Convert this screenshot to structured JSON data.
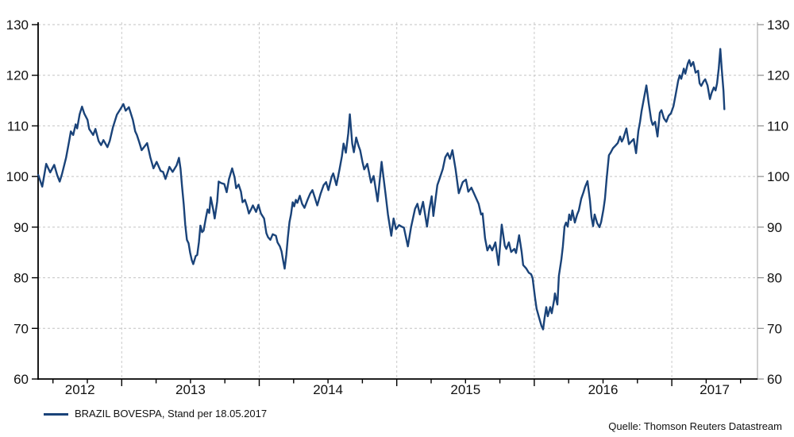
{
  "legend": {
    "label": "BRAZIL BOVESPA, Stand per 18.05.2017",
    "color": "#1a4379"
  },
  "source": "Quelle: Thomson Reuters Datastream",
  "chart_data": {
    "type": "line",
    "title": "",
    "xlabel": "",
    "ylabel": "",
    "grid": "dashed",
    "legend_position": "bottom-left",
    "x_axis": {
      "range": [
        2012.392,
        2017.623
      ],
      "year_labels": [
        "2012",
        "2013",
        "2014",
        "2015",
        "2016",
        "2017"
      ],
      "minor_tick_interval_years": 0.25,
      "gridlines_at_years": [
        2013,
        2014,
        2015,
        2016,
        2017
      ]
    },
    "y_axis": {
      "range": [
        60,
        130
      ],
      "ticks": [
        60,
        70,
        80,
        90,
        100,
        110,
        120,
        130
      ],
      "sides": "both"
    },
    "series": [
      {
        "name": "BRAZIL BOVESPA, Stand per 18.05.2017",
        "color": "#1a4379",
        "points": [
          [
            2012.393,
            100.3
          ],
          [
            2012.422,
            98.0
          ],
          [
            2012.451,
            102.5
          ],
          [
            2012.48,
            100.8
          ],
          [
            2012.509,
            102.3
          ],
          [
            2012.532,
            100.2
          ],
          [
            2012.549,
            99.0
          ],
          [
            2012.566,
            100.5
          ],
          [
            2012.595,
            103.7
          ],
          [
            2012.618,
            107.0
          ],
          [
            2012.63,
            108.9
          ],
          [
            2012.647,
            108.2
          ],
          [
            2012.665,
            110.3
          ],
          [
            2012.676,
            109.5
          ],
          [
            2012.694,
            112.3
          ],
          [
            2012.711,
            113.8
          ],
          [
            2012.728,
            112.4
          ],
          [
            2012.751,
            111.2
          ],
          [
            2012.763,
            109.4
          ],
          [
            2012.792,
            108.2
          ],
          [
            2012.809,
            109.4
          ],
          [
            2012.832,
            107.0
          ],
          [
            2012.85,
            106.2
          ],
          [
            2012.867,
            107.2
          ],
          [
            2012.896,
            105.8
          ],
          [
            2012.913,
            107.0
          ],
          [
            2012.936,
            109.7
          ],
          [
            2012.965,
            112.2
          ],
          [
            2012.988,
            113.2
          ],
          [
            2013.012,
            114.3
          ],
          [
            2013.029,
            113.0
          ],
          [
            2013.052,
            113.7
          ],
          [
            2013.081,
            111.2
          ],
          [
            2013.098,
            108.9
          ],
          [
            2013.11,
            108.2
          ],
          [
            2013.127,
            106.8
          ],
          [
            2013.145,
            105.2
          ],
          [
            2013.168,
            106.0
          ],
          [
            2013.185,
            106.6
          ],
          [
            2013.208,
            103.8
          ],
          [
            2013.231,
            101.6
          ],
          [
            2013.254,
            102.9
          ],
          [
            2013.283,
            101.1
          ],
          [
            2013.301,
            100.9
          ],
          [
            2013.318,
            99.5
          ],
          [
            2013.347,
            101.9
          ],
          [
            2013.37,
            100.9
          ],
          [
            2013.399,
            102.2
          ],
          [
            2013.416,
            103.7
          ],
          [
            2013.428,
            101.5
          ],
          [
            2013.439,
            98.0
          ],
          [
            2013.451,
            94.5
          ],
          [
            2013.462,
            90.5
          ],
          [
            2013.474,
            87.5
          ],
          [
            2013.486,
            86.8
          ],
          [
            2013.497,
            85.0
          ],
          [
            2013.509,
            83.5
          ],
          [
            2013.52,
            82.7
          ],
          [
            2013.538,
            84.3
          ],
          [
            2013.549,
            84.5
          ],
          [
            2013.561,
            87.0
          ],
          [
            2013.572,
            90.3
          ],
          [
            2013.584,
            89.0
          ],
          [
            2013.595,
            89.3
          ],
          [
            2013.613,
            92.0
          ],
          [
            2013.624,
            93.5
          ],
          [
            2013.636,
            92.8
          ],
          [
            2013.647,
            95.9
          ],
          [
            2013.665,
            93.5
          ],
          [
            2013.676,
            91.7
          ],
          [
            2013.694,
            95.0
          ],
          [
            2013.705,
            99.0
          ],
          [
            2013.723,
            98.7
          ],
          [
            2013.746,
            98.5
          ],
          [
            2013.763,
            96.9
          ],
          [
            2013.78,
            99.5
          ],
          [
            2013.803,
            101.6
          ],
          [
            2013.821,
            99.8
          ],
          [
            2013.832,
            97.7
          ],
          [
            2013.85,
            98.4
          ],
          [
            2013.867,
            97.0
          ],
          [
            2013.879,
            94.9
          ],
          [
            2013.896,
            95.4
          ],
          [
            2013.913,
            94.0
          ],
          [
            2013.925,
            92.7
          ],
          [
            2013.942,
            93.6
          ],
          [
            2013.954,
            94.3
          ],
          [
            2013.977,
            93.0
          ],
          [
            2013.994,
            94.4
          ],
          [
            2014.012,
            92.7
          ],
          [
            2014.035,
            91.7
          ],
          [
            2014.052,
            88.8
          ],
          [
            2014.064,
            88.0
          ],
          [
            2014.081,
            87.5
          ],
          [
            2014.098,
            88.6
          ],
          [
            2014.121,
            88.3
          ],
          [
            2014.133,
            87.0
          ],
          [
            2014.15,
            86.2
          ],
          [
            2014.162,
            85.2
          ],
          [
            2014.173,
            83.5
          ],
          [
            2014.185,
            81.8
          ],
          [
            2014.197,
            84.5
          ],
          [
            2014.208,
            87.9
          ],
          [
            2014.22,
            91.0
          ],
          [
            2014.231,
            92.5
          ],
          [
            2014.243,
            94.9
          ],
          [
            2014.254,
            94.1
          ],
          [
            2014.266,
            95.4
          ],
          [
            2014.277,
            94.8
          ],
          [
            2014.295,
            96.2
          ],
          [
            2014.312,
            94.6
          ],
          [
            2014.329,
            93.8
          ],
          [
            2014.353,
            95.5
          ],
          [
            2014.37,
            96.6
          ],
          [
            2014.387,
            97.3
          ],
          [
            2014.405,
            95.8
          ],
          [
            2014.422,
            94.3
          ],
          [
            2014.445,
            96.5
          ],
          [
            2014.468,
            98.3
          ],
          [
            2014.486,
            98.9
          ],
          [
            2014.503,
            97.3
          ],
          [
            2014.526,
            99.9
          ],
          [
            2014.538,
            100.6
          ],
          [
            2014.561,
            98.3
          ],
          [
            2014.584,
            101.5
          ],
          [
            2014.601,
            104.0
          ],
          [
            2014.613,
            106.5
          ],
          [
            2014.63,
            104.7
          ],
          [
            2014.647,
            108.5
          ],
          [
            2014.659,
            112.3
          ],
          [
            2014.676,
            106.5
          ],
          [
            2014.688,
            104.8
          ],
          [
            2014.705,
            107.7
          ],
          [
            2014.723,
            106.0
          ],
          [
            2014.734,
            105.2
          ],
          [
            2014.751,
            102.8
          ],
          [
            2014.763,
            101.4
          ],
          [
            2014.786,
            102.5
          ],
          [
            2014.813,
            98.8
          ],
          [
            2014.832,
            100.1
          ],
          [
            2014.861,
            95.1
          ],
          [
            2014.89,
            102.9
          ],
          [
            2014.919,
            96.4
          ],
          [
            2014.936,
            92.5
          ],
          [
            2014.96,
            88.3
          ],
          [
            2014.977,
            91.7
          ],
          [
            2014.994,
            89.6
          ],
          [
            2015.017,
            90.4
          ],
          [
            2015.035,
            90.1
          ],
          [
            2015.052,
            89.9
          ],
          [
            2015.081,
            86.2
          ],
          [
            2015.104,
            90.0
          ],
          [
            2015.133,
            93.6
          ],
          [
            2015.15,
            94.6
          ],
          [
            2015.168,
            92.5
          ],
          [
            2015.191,
            95.0
          ],
          [
            2015.22,
            90.1
          ],
          [
            2015.237,
            93.5
          ],
          [
            2015.254,
            96.1
          ],
          [
            2015.266,
            92.2
          ],
          [
            2015.295,
            98.3
          ],
          [
            2015.312,
            99.6
          ],
          [
            2015.335,
            101.5
          ],
          [
            2015.353,
            103.8
          ],
          [
            2015.37,
            104.6
          ],
          [
            2015.387,
            103.5
          ],
          [
            2015.405,
            105.2
          ],
          [
            2015.428,
            101.4
          ],
          [
            2015.451,
            96.7
          ],
          [
            2015.48,
            98.9
          ],
          [
            2015.503,
            99.4
          ],
          [
            2015.52,
            97.0
          ],
          [
            2015.543,
            97.8
          ],
          [
            2015.566,
            96.4
          ],
          [
            2015.595,
            94.6
          ],
          [
            2015.613,
            92.5
          ],
          [
            2015.624,
            92.7
          ],
          [
            2015.642,
            87.8
          ],
          [
            2015.659,
            85.4
          ],
          [
            2015.676,
            86.4
          ],
          [
            2015.694,
            85.4
          ],
          [
            2015.717,
            87.0
          ],
          [
            2015.74,
            82.5
          ],
          [
            2015.763,
            90.5
          ],
          [
            2015.786,
            86.3
          ],
          [
            2015.797,
            85.7
          ],
          [
            2015.815,
            87.0
          ],
          [
            2015.832,
            85.1
          ],
          [
            2015.855,
            85.7
          ],
          [
            2015.867,
            84.9
          ],
          [
            2015.89,
            88.4
          ],
          [
            2015.908,
            85.1
          ],
          [
            2015.919,
            82.5
          ],
          [
            2015.942,
            81.8
          ],
          [
            2015.96,
            81.0
          ],
          [
            2015.977,
            80.7
          ],
          [
            2015.988,
            79.9
          ],
          [
            2016.006,
            76.0
          ],
          [
            2016.017,
            73.9
          ],
          [
            2016.035,
            72.1
          ],
          [
            2016.052,
            70.5
          ],
          [
            2016.064,
            69.8
          ],
          [
            2016.075,
            72.1
          ],
          [
            2016.087,
            74.2
          ],
          [
            2016.098,
            72.4
          ],
          [
            2016.116,
            74.2
          ],
          [
            2016.127,
            73.0
          ],
          [
            2016.145,
            75.7
          ],
          [
            2016.15,
            76.9
          ],
          [
            2016.168,
            74.7
          ],
          [
            2016.179,
            80.4
          ],
          [
            2016.197,
            83.6
          ],
          [
            2016.208,
            86.2
          ],
          [
            2016.22,
            90.1
          ],
          [
            2016.231,
            90.9
          ],
          [
            2016.243,
            90.1
          ],
          [
            2016.254,
            92.5
          ],
          [
            2016.266,
            91.4
          ],
          [
            2016.277,
            93.3
          ],
          [
            2016.295,
            90.9
          ],
          [
            2016.312,
            92.5
          ],
          [
            2016.324,
            93.3
          ],
          [
            2016.341,
            95.6
          ],
          [
            2016.358,
            96.9
          ],
          [
            2016.37,
            98.0
          ],
          [
            2016.387,
            99.1
          ],
          [
            2016.405,
            95.3
          ],
          [
            2016.416,
            92.0
          ],
          [
            2016.428,
            90.2
          ],
          [
            2016.439,
            92.5
          ],
          [
            2016.457,
            90.8
          ],
          [
            2016.474,
            90.0
          ],
          [
            2016.486,
            91.0
          ],
          [
            2016.503,
            93.5
          ],
          [
            2016.514,
            95.6
          ],
          [
            2016.526,
            99.5
          ],
          [
            2016.543,
            104.2
          ],
          [
            2016.555,
            104.7
          ],
          [
            2016.572,
            105.6
          ],
          [
            2016.59,
            106.1
          ],
          [
            2016.607,
            106.6
          ],
          [
            2016.624,
            107.9
          ],
          [
            2016.636,
            106.9
          ],
          [
            2016.647,
            107.5
          ],
          [
            2016.67,
            109.5
          ],
          [
            2016.688,
            106.4
          ],
          [
            2016.705,
            106.9
          ],
          [
            2016.723,
            107.4
          ],
          [
            2016.74,
            104.6
          ],
          [
            2016.757,
            109.0
          ],
          [
            2016.769,
            110.8
          ],
          [
            2016.78,
            112.9
          ],
          [
            2016.798,
            115.5
          ],
          [
            2016.815,
            118.0
          ],
          [
            2016.832,
            114.5
          ],
          [
            2016.85,
            111.2
          ],
          [
            2016.861,
            110.2
          ],
          [
            2016.879,
            110.8
          ],
          [
            2016.896,
            107.9
          ],
          [
            2016.913,
            112.6
          ],
          [
            2016.925,
            113.1
          ],
          [
            2016.942,
            111.5
          ],
          [
            2016.96,
            110.8
          ],
          [
            2016.977,
            112.0
          ],
          [
            2016.994,
            112.5
          ],
          [
            2017.012,
            113.9
          ],
          [
            2017.029,
            116.3
          ],
          [
            2017.046,
            118.9
          ],
          [
            2017.058,
            120.0
          ],
          [
            2017.069,
            119.3
          ],
          [
            2017.087,
            121.3
          ],
          [
            2017.098,
            120.3
          ],
          [
            2017.116,
            122.3
          ],
          [
            2017.127,
            123.0
          ],
          [
            2017.139,
            121.8
          ],
          [
            2017.156,
            122.6
          ],
          [
            2017.173,
            120.5
          ],
          [
            2017.191,
            120.9
          ],
          [
            2017.202,
            118.4
          ],
          [
            2017.214,
            117.9
          ],
          [
            2017.231,
            118.8
          ],
          [
            2017.243,
            119.2
          ],
          [
            2017.26,
            118.0
          ],
          [
            2017.277,
            115.3
          ],
          [
            2017.289,
            116.5
          ],
          [
            2017.306,
            117.6
          ],
          [
            2017.318,
            117.0
          ],
          [
            2017.329,
            118.4
          ],
          [
            2017.341,
            121.3
          ],
          [
            2017.353,
            125.2
          ],
          [
            2017.364,
            121.0
          ],
          [
            2017.376,
            116.9
          ],
          [
            2017.382,
            113.3
          ]
        ]
      }
    ]
  }
}
